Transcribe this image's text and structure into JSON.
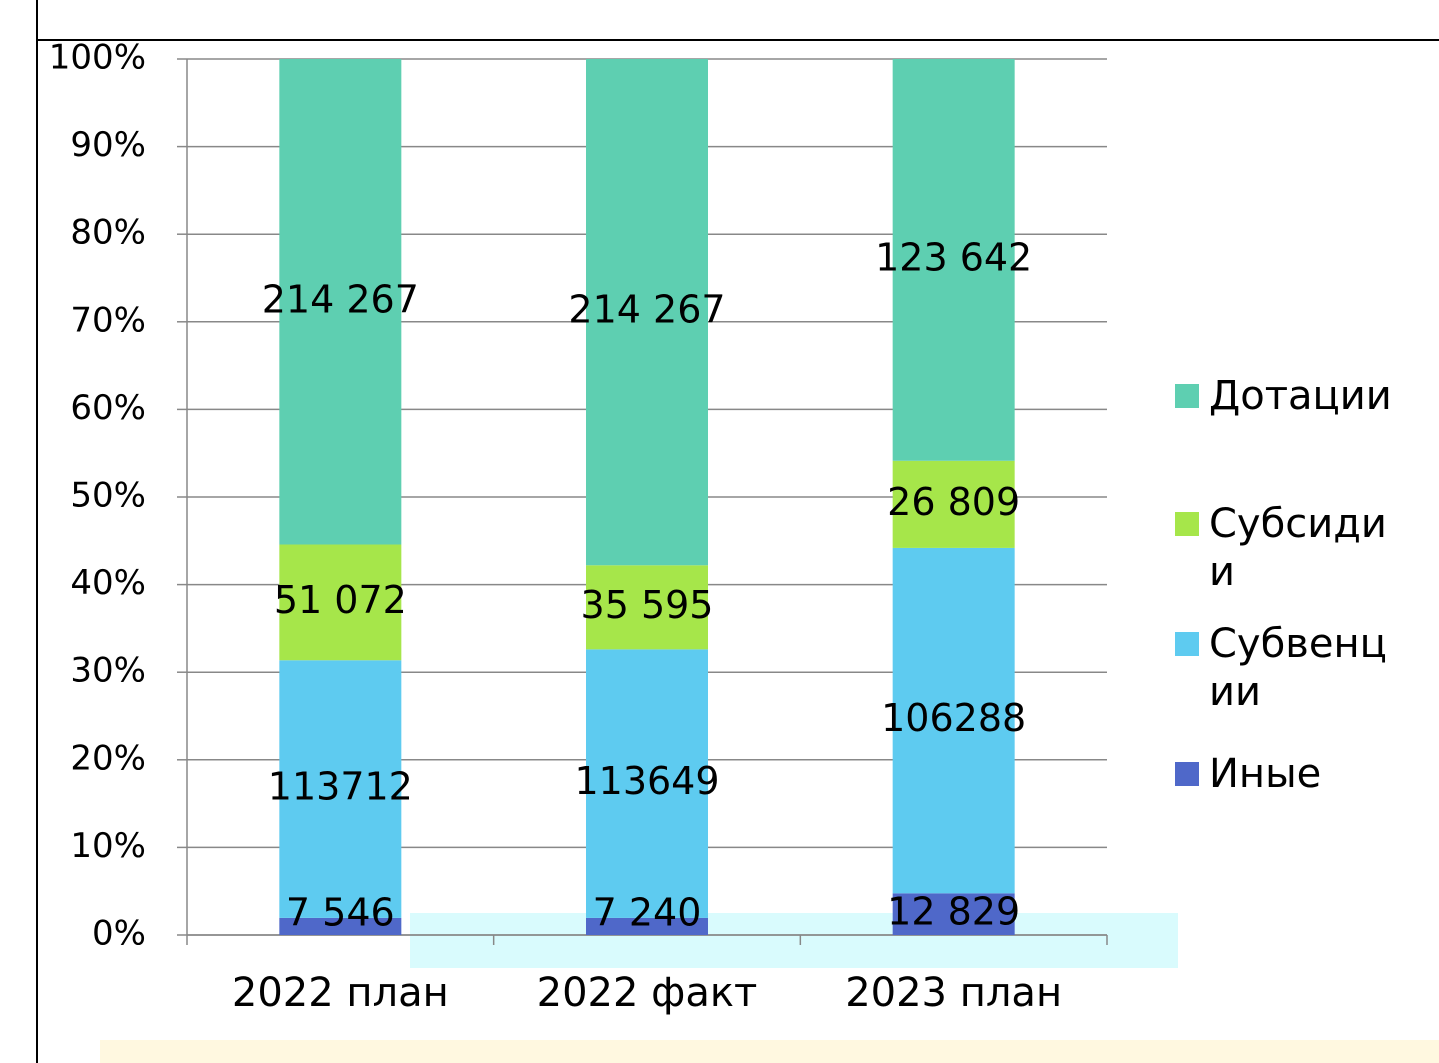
{
  "chart_data": {
    "type": "bar",
    "stacking": "percent",
    "categories": [
      "2022 план",
      "2022 факт",
      "2023 план"
    ],
    "series": [
      {
        "name": "Иные",
        "color": "#4f68c9",
        "values": [
          7546,
          7240,
          12829
        ],
        "value_labels": [
          "7 546",
          "7 240",
          "12 829"
        ]
      },
      {
        "name": "Субвенции",
        "color": "#5ecbf0",
        "values": [
          113712,
          113649,
          106288
        ],
        "value_labels": [
          "113712",
          "113649",
          "106288"
        ]
      },
      {
        "name": "Субсидии",
        "color": "#a6e64a",
        "values": [
          51072,
          35595,
          26809
        ],
        "value_labels": [
          "51 072",
          "35 595",
          "26 809"
        ]
      },
      {
        "name": "Дотации",
        "color": "#5ecfb1",
        "values": [
          214267,
          214267,
          123642
        ],
        "value_labels": [
          "214 267",
          "214 267",
          "123 642"
        ]
      }
    ],
    "ylim": [
      0,
      100
    ],
    "yticks": [
      {
        "value": 0,
        "label": "0%"
      },
      {
        "value": 10,
        "label": "10%"
      },
      {
        "value": 20,
        "label": "20%"
      },
      {
        "value": 30,
        "label": "30%"
      },
      {
        "value": 40,
        "label": "40%"
      },
      {
        "value": 50,
        "label": "50%"
      },
      {
        "value": 60,
        "label": "60%"
      },
      {
        "value": 70,
        "label": "70%"
      },
      {
        "value": 80,
        "label": "80%"
      },
      {
        "value": 90,
        "label": "90%"
      },
      {
        "value": 100,
        "label": "100%"
      }
    ],
    "grid": true,
    "legend": "right"
  }
}
